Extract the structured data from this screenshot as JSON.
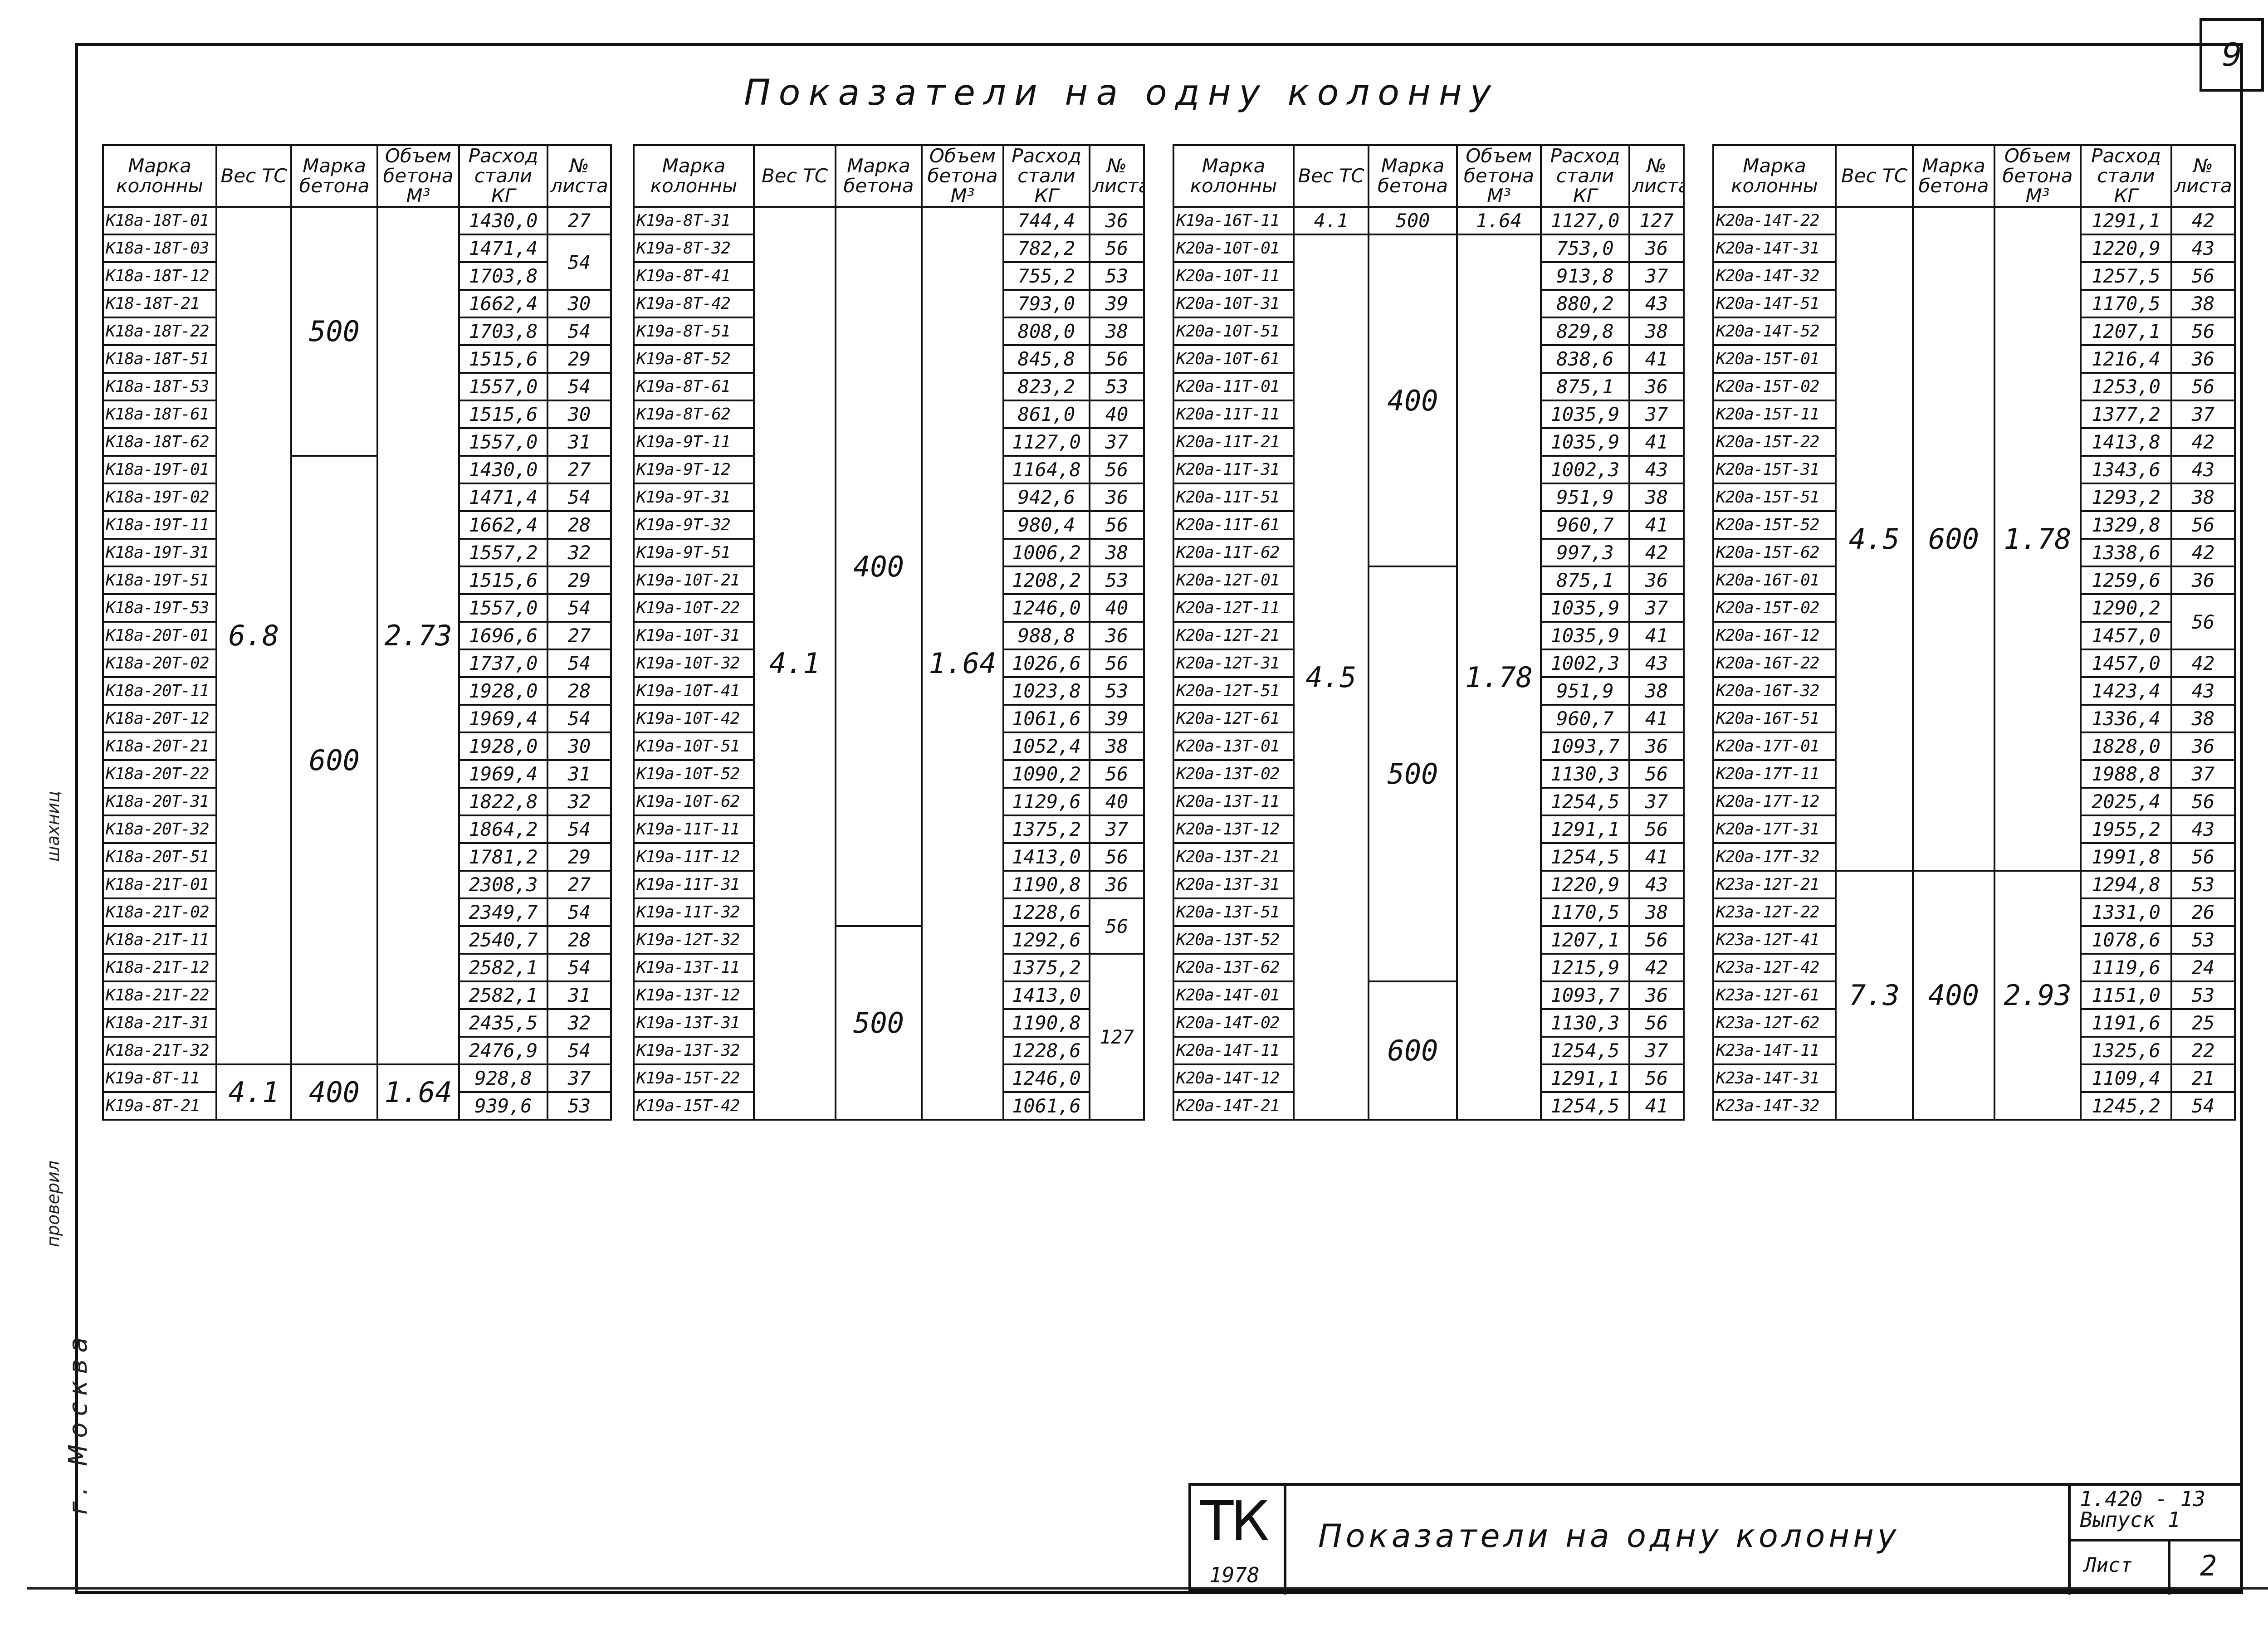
{
  "page_number": "9",
  "main_title": "Показатели на одну колонну",
  "headers": {
    "mark": "Марка колонны",
    "weight": "Вес ТС",
    "concrete": "Марка бетона",
    "volume": "Объем бетона М³",
    "steel": "Расход стали КГ",
    "sheet": "№ листа"
  },
  "block1": {
    "rows": [
      {
        "mark": "К18а-18Т-01",
        "steel": "1430,0",
        "sheet": "27"
      },
      {
        "mark": "К18а-18Т-03",
        "steel": "1471,4",
        "sheet": "54"
      },
      {
        "mark": "К18а-18Т-12",
        "steel": "1703,8",
        "sheet": ""
      },
      {
        "mark": "К18-18Т-21",
        "steel": "1662,4",
        "sheet": "30"
      },
      {
        "mark": "К18а-18Т-22",
        "steel": "1703,8",
        "sheet": "54"
      },
      {
        "mark": "К18а-18Т-51",
        "steel": "1515,6",
        "sheet": "29"
      },
      {
        "mark": "К18а-18Т-53",
        "steel": "1557,0",
        "sheet": "54"
      },
      {
        "mark": "К18а-18Т-61",
        "steel": "1515,6",
        "sheet": "30"
      },
      {
        "mark": "К18а-18Т-62",
        "steel": "1557,0",
        "sheet": "31"
      },
      {
        "mark": "К18а-19Т-01",
        "steel": "1430,0",
        "sheet": "27"
      },
      {
        "mark": "К18а-19Т-02",
        "steel": "1471,4",
        "sheet": "54"
      },
      {
        "mark": "К18а-19Т-11",
        "steel": "1662,4",
        "sheet": "28"
      },
      {
        "mark": "К18а-19Т-31",
        "steel": "1557,2",
        "sheet": "32"
      },
      {
        "mark": "К18а-19Т-51",
        "steel": "1515,6",
        "sheet": "29"
      },
      {
        "mark": "К18а-19Т-53",
        "steel": "1557,0",
        "sheet": "54"
      },
      {
        "mark": "К18а-20Т-01",
        "steel": "1696,6",
        "sheet": "27"
      },
      {
        "mark": "К18а-20Т-02",
        "steel": "1737,0",
        "sheet": "54"
      },
      {
        "mark": "К18а-20Т-11",
        "steel": "1928,0",
        "sheet": "28"
      },
      {
        "mark": "К18а-20Т-12",
        "steel": "1969,4",
        "sheet": "54"
      },
      {
        "mark": "К18а-20Т-21",
        "steel": "1928,0",
        "sheet": "30"
      },
      {
        "mark": "К18а-20Т-22",
        "steel": "1969,4",
        "sheet": "31"
      },
      {
        "mark": "К18а-20Т-31",
        "steel": "1822,8",
        "sheet": "32"
      },
      {
        "mark": "К18а-20Т-32",
        "steel": "1864,2",
        "sheet": "54"
      },
      {
        "mark": "К18а-20Т-51",
        "steel": "1781,2",
        "sheet": "29"
      },
      {
        "mark": "К18а-21Т-01",
        "steel": "2308,3",
        "sheet": "27"
      },
      {
        "mark": "К18а-21Т-02",
        "steel": "2349,7",
        "sheet": "54"
      },
      {
        "mark": "К18а-21Т-11",
        "steel": "2540,7",
        "sheet": "28"
      },
      {
        "mark": "К18а-21Т-12",
        "steel": "2582,1",
        "sheet": "54"
      },
      {
        "mark": "К18а-21Т-22",
        "steel": "2582,1",
        "sheet": "31"
      },
      {
        "mark": "К18а-21Т-31",
        "steel": "2435,5",
        "sheet": "32"
      },
      {
        "mark": "К18а-21Т-32",
        "steel": "2476,9",
        "sheet": "54"
      },
      {
        "mark": "К19а-8Т-11",
        "steel": "928,8",
        "sheet": "37"
      },
      {
        "mark": "К19а-8Т-21",
        "steel": "939,6",
        "sheet": "53"
      }
    ],
    "weight_a": "6.8",
    "weight_b": "4.1",
    "concrete_a": "500",
    "concrete_b": "600",
    "concrete_c": "400",
    "volume_a": "2.73",
    "volume_b": "1.64"
  },
  "block2": {
    "rows": [
      {
        "mark": "К19а-8Т-31",
        "steel": "744,4",
        "sheet": "36"
      },
      {
        "mark": "К19а-8Т-32",
        "steel": "782,2",
        "sheet": "56"
      },
      {
        "mark": "К19а-8Т-41",
        "steel": "755,2",
        "sheet": "53"
      },
      {
        "mark": "К19а-8Т-42",
        "steel": "793,0",
        "sheet": "39"
      },
      {
        "mark": "К19а-8Т-51",
        "steel": "808,0",
        "sheet": "38"
      },
      {
        "mark": "К19а-8Т-52",
        "steel": "845,8",
        "sheet": "56"
      },
      {
        "mark": "К19а-8Т-61",
        "steel": "823,2",
        "sheet": "53"
      },
      {
        "mark": "К19а-8Т-62",
        "steel": "861,0",
        "sheet": "40"
      },
      {
        "mark": "К19а-9Т-11",
        "steel": "1127,0",
        "sheet": "37"
      },
      {
        "mark": "К19а-9Т-12",
        "steel": "1164,8",
        "sheet": "56"
      },
      {
        "mark": "К19а-9Т-31",
        "steel": "942,6",
        "sheet": "36"
      },
      {
        "mark": "К19а-9Т-32",
        "steel": "980,4",
        "sheet": "56"
      },
      {
        "mark": "К19а-9Т-51",
        "steel": "1006,2",
        "sheet": "38"
      },
      {
        "mark": "К19а-10Т-21",
        "steel": "1208,2",
        "sheet": "53"
      },
      {
        "mark": "К19а-10Т-22",
        "steel": "1246,0",
        "sheet": "40"
      },
      {
        "mark": "К19а-10Т-31",
        "steel": "988,8",
        "sheet": "36"
      },
      {
        "mark": "К19а-10Т-32",
        "steel": "1026,6",
        "sheet": "56"
      },
      {
        "mark": "К19а-10Т-41",
        "steel": "1023,8",
        "sheet": "53"
      },
      {
        "mark": "К19а-10Т-42",
        "steel": "1061,6",
        "sheet": "39"
      },
      {
        "mark": "К19а-10Т-51",
        "steel": "1052,4",
        "sheet": "38"
      },
      {
        "mark": "К19а-10Т-52",
        "steel": "1090,2",
        "sheet": "56"
      },
      {
        "mark": "К19а-10Т-62",
        "steel": "1129,6",
        "sheet": "40"
      },
      {
        "mark": "К19а-11Т-11",
        "steel": "1375,2",
        "sheet": "37"
      },
      {
        "mark": "К19а-11Т-12",
        "steel": "1413,0",
        "sheet": "56"
      },
      {
        "mark": "К19а-11Т-31",
        "steel": "1190,8",
        "sheet": "36"
      },
      {
        "mark": "К19а-11Т-32",
        "steel": "1228,6",
        "sheet": "56"
      },
      {
        "mark": "К19а-12Т-32",
        "steel": "1292,6",
        "sheet": ""
      },
      {
        "mark": "К19а-13Т-11",
        "steel": "1375,2",
        "sheet": "127"
      },
      {
        "mark": "К19а-13Т-12",
        "steel": "1413,0",
        "sheet": ""
      },
      {
        "mark": "К19а-13Т-31",
        "steel": "1190,8",
        "sheet": ""
      },
      {
        "mark": "К19а-13Т-32",
        "steel": "1228,6",
        "sheet": ""
      },
      {
        "mark": "К19а-15Т-22",
        "steel": "1246,0",
        "sheet": ""
      },
      {
        "mark": "К19а-15Т-42",
        "steel": "1061,6",
        "sheet": ""
      }
    ],
    "weight": "4.1",
    "concrete_a": "400",
    "concrete_b": "500",
    "volume": "1.64"
  },
  "block3": {
    "first": {
      "mark": "К19а-16Т-11",
      "weight": "4.1",
      "concrete": "500",
      "volume": "1.64",
      "steel": "1127,0",
      "sheet": "127"
    },
    "rows": [
      {
        "mark": "К20а-10Т-01",
        "steel": "753,0",
        "sheet": "36"
      },
      {
        "mark": "К20а-10Т-11",
        "steel": "913,8",
        "sheet": "37"
      },
      {
        "mark": "К20а-10Т-31",
        "steel": "880,2",
        "sheet": "43"
      },
      {
        "mark": "К20а-10Т-51",
        "steel": "829,8",
        "sheet": "38"
      },
      {
        "mark": "К20а-10Т-61",
        "steel": "838,6",
        "sheet": "41"
      },
      {
        "mark": "К20а-11Т-01",
        "steel": "875,1",
        "sheet": "36"
      },
      {
        "mark": "К20а-11Т-11",
        "steel": "1035,9",
        "sheet": "37"
      },
      {
        "mark": "К20а-11Т-21",
        "steel": "1035,9",
        "sheet": "41"
      },
      {
        "mark": "К20а-11Т-31",
        "steel": "1002,3",
        "sheet": "43"
      },
      {
        "mark": "К20а-11Т-51",
        "steel": "951,9",
        "sheet": "38"
      },
      {
        "mark": "К20а-11Т-61",
        "steel": "960,7",
        "sheet": "41"
      },
      {
        "mark": "К20а-11Т-62",
        "steel": "997,3",
        "sheet": "42"
      },
      {
        "mark": "К20а-12Т-01",
        "steel": "875,1",
        "sheet": "36"
      },
      {
        "mark": "К20а-12Т-11",
        "steel": "1035,9",
        "sheet": "37"
      },
      {
        "mark": "К20а-12Т-21",
        "steel": "1035,9",
        "sheet": "41"
      },
      {
        "mark": "К20а-12Т-31",
        "steel": "1002,3",
        "sheet": "43"
      },
      {
        "mark": "К20а-12Т-51",
        "steel": "951,9",
        "sheet": "38"
      },
      {
        "mark": "К20а-12Т-61",
        "steel": "960,7",
        "sheet": "41"
      },
      {
        "mark": "К20а-13Т-01",
        "steel": "1093,7",
        "sheet": "36"
      },
      {
        "mark": "К20а-13Т-02",
        "steel": "1130,3",
        "sheet": "56"
      },
      {
        "mark": "К20а-13Т-11",
        "steel": "1254,5",
        "sheet": "37"
      },
      {
        "mark": "К20а-13Т-12",
        "steel": "1291,1",
        "sheet": "56"
      },
      {
        "mark": "К20а-13Т-21",
        "steel": "1254,5",
        "sheet": "41"
      },
      {
        "mark": "К20а-13Т-31",
        "steel": "1220,9",
        "sheet": "43"
      },
      {
        "mark": "К20а-13Т-51",
        "steel": "1170,5",
        "sheet": "38"
      },
      {
        "mark": "К20а-13Т-52",
        "steel": "1207,1",
        "sheet": "56"
      },
      {
        "mark": "К20а-13Т-62",
        "steel": "1215,9",
        "sheet": "42"
      },
      {
        "mark": "К20а-14Т-01",
        "steel": "1093,7",
        "sheet": "36"
      },
      {
        "mark": "К20а-14Т-02",
        "steel": "1130,3",
        "sheet": "56"
      },
      {
        "mark": "К20а-14Т-11",
        "steel": "1254,5",
        "sheet": "37"
      },
      {
        "mark": "К20а-14Т-12",
        "steel": "1291,1",
        "sheet": "56"
      },
      {
        "mark": "К20а-14Т-21",
        "steel": "1254,5",
        "sheet": "41"
      }
    ],
    "weight": "4.5",
    "concrete_a": "400",
    "concrete_b": "500",
    "concrete_c": "600",
    "volume": "1.78"
  },
  "block4": {
    "rows": [
      {
        "mark": "К20а-14Т-22",
        "steel": "1291,1",
        "sheet": "42"
      },
      {
        "mark": "К20а-14Т-31",
        "steel": "1220,9",
        "sheet": "43"
      },
      {
        "mark": "К20а-14Т-32",
        "steel": "1257,5",
        "sheet": "56"
      },
      {
        "mark": "К20а-14Т-51",
        "steel": "1170,5",
        "sheet": "38"
      },
      {
        "mark": "К20а-14Т-52",
        "steel": "1207,1",
        "sheet": "56"
      },
      {
        "mark": "К20а-15Т-01",
        "steel": "1216,4",
        "sheet": "36"
      },
      {
        "mark": "К20а-15Т-02",
        "steel": "1253,0",
        "sheet": "56"
      },
      {
        "mark": "К20а-15Т-11",
        "steel": "1377,2",
        "sheet": "37"
      },
      {
        "mark": "К20а-15Т-22",
        "steel": "1413,8",
        "sheet": "42"
      },
      {
        "mark": "К20а-15Т-31",
        "steel": "1343,6",
        "sheet": "43"
      },
      {
        "mark": "К20а-15Т-51",
        "steel": "1293,2",
        "sheet": "38"
      },
      {
        "mark": "К20а-15Т-52",
        "steel": "1329,8",
        "sheet": "56"
      },
      {
        "mark": "К20а-15Т-62",
        "steel": "1338,6",
        "sheet": "42"
      },
      {
        "mark": "К20а-16Т-01",
        "steel": "1259,6",
        "sheet": "36"
      },
      {
        "mark": "К20а-15Т-02",
        "steel": "1290,2",
        "sheet": "56"
      },
      {
        "mark": "К20а-16Т-12",
        "steel": "1457,0",
        "sheet": ""
      },
      {
        "mark": "К20а-16Т-22",
        "steel": "1457,0",
        "sheet": "42"
      },
      {
        "mark": "К20а-16Т-32",
        "steel": "1423,4",
        "sheet": "43"
      },
      {
        "mark": "К20а-16Т-51",
        "steel": "1336,4",
        "sheet": "38"
      },
      {
        "mark": "К20а-17Т-01",
        "steel": "1828,0",
        "sheet": "36"
      },
      {
        "mark": "К20а-17Т-11",
        "steel": "1988,8",
        "sheet": "37"
      },
      {
        "mark": "К20а-17Т-12",
        "steel": "2025,4",
        "sheet": "56"
      },
      {
        "mark": "К20а-17Т-31",
        "steel": "1955,2",
        "sheet": "43"
      },
      {
        "mark": "К20а-17Т-32",
        "steel": "1991,8",
        "sheet": "56"
      },
      {
        "mark": "К23а-12Т-21",
        "steel": "1294,8",
        "sheet": "53"
      },
      {
        "mark": "К23а-12Т-22",
        "steel": "1331,0",
        "sheet": "26"
      },
      {
        "mark": "К23а-12Т-41",
        "steel": "1078,6",
        "sheet": "53"
      },
      {
        "mark": "К23а-12Т-42",
        "steel": "1119,6",
        "sheet": "24"
      },
      {
        "mark": "К23а-12Т-61",
        "steel": "1151,0",
        "sheet": "53"
      },
      {
        "mark": "К23а-12Т-62",
        "steel": "1191,6",
        "sheet": "25"
      },
      {
        "mark": "К23а-14Т-11",
        "steel": "1325,6",
        "sheet": "22"
      },
      {
        "mark": "К23а-14Т-31",
        "steel": "1109,4",
        "sheet": "21"
      },
      {
        "mark": "К23а-14Т-32",
        "steel": "1245,2",
        "sheet": "54"
      }
    ],
    "weight_a": "4.5",
    "weight_b": "7.3",
    "concrete_a": "600",
    "concrete_b": "400",
    "volume_a": "1.78",
    "volume_b": "2.93"
  },
  "stamp": {
    "logo": "ТК",
    "year": "1978",
    "title": "Показатели на одну колонну",
    "code": "1.420 - 13",
    "issue": "Выпуск 1",
    "sheet_label": "Лист",
    "sheet_value": "2"
  },
  "margin": {
    "city": "г. Москва",
    "checked": "проверил",
    "signature": "шахниц"
  }
}
